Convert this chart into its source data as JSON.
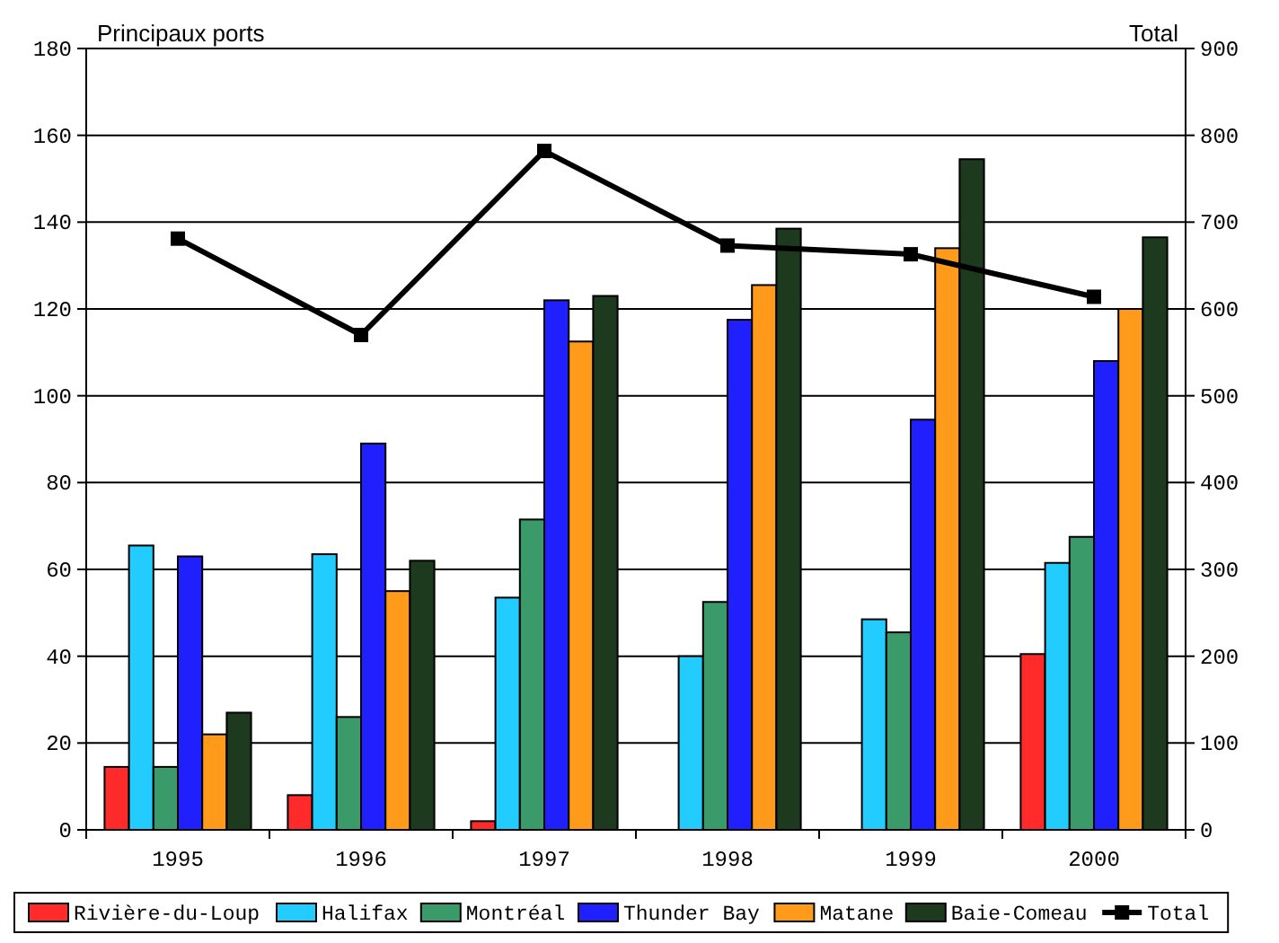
{
  "chart_data": {
    "type": "bar",
    "categories": [
      "1995",
      "1996",
      "1997",
      "1998",
      "1999",
      "2000"
    ],
    "ylabel": "Principaux ports",
    "y2label": "Total",
    "series": [
      {
        "name": "Rivière-du-Loup",
        "color": "#ff2a2a",
        "values": [
          14.5,
          8,
          2,
          null,
          null,
          40.5
        ]
      },
      {
        "name": "Halifax",
        "color": "#22ccff",
        "values": [
          65.5,
          63.5,
          53.5,
          40,
          48.5,
          61.5
        ]
      },
      {
        "name": "Montréal",
        "color": "#3a9a6a",
        "values": [
          14.5,
          26,
          71.5,
          52.5,
          45.5,
          67.5
        ]
      },
      {
        "name": "Thunder Bay",
        "color": "#2020ff",
        "values": [
          63,
          89,
          122,
          117.5,
          94.5,
          108
        ]
      },
      {
        "name": "Matane",
        "color": "#ff9a1a",
        "values": [
          22,
          55,
          112.5,
          125.5,
          134,
          120
        ]
      },
      {
        "name": "Baie-Comeau",
        "color": "#1e3a1e",
        "values": [
          27,
          62,
          123,
          138.5,
          154.5,
          136.5
        ]
      },
      {
        "name": "Total",
        "type": "line",
        "axis": "y2",
        "color": "#000000",
        "values": [
          681,
          570,
          782,
          673,
          663,
          614
        ]
      }
    ],
    "ylim": [
      0,
      180
    ],
    "yticks": [
      0,
      20,
      40,
      60,
      80,
      100,
      120,
      140,
      160,
      180
    ],
    "y2lim": [
      0,
      900
    ],
    "y2ticks": [
      0,
      100,
      200,
      300,
      400,
      500,
      600,
      700,
      800,
      900
    ],
    "grid": "y",
    "legend": "bottom",
    "marker": "square"
  }
}
